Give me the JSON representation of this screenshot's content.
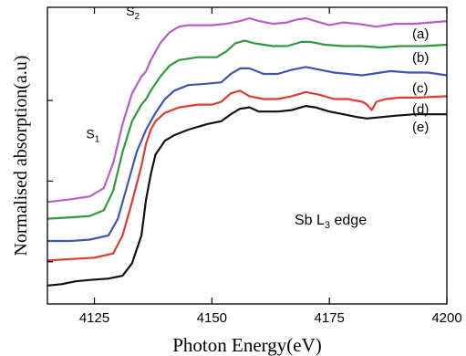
{
  "chart_data": {
    "type": "line",
    "xlabel": "Photon Energy(eV)",
    "ylabel": "Normalised absorption(a.u)",
    "xlim": [
      4115,
      4200
    ],
    "x_ticks": [
      4125,
      4150,
      4175,
      4200
    ],
    "ylim": [
      0,
      1
    ],
    "y_tick_labels": "none",
    "grid": false,
    "annotation": {
      "text": "Sb L",
      "sub": "3",
      "rest": " edge"
    },
    "features": [
      {
        "label": "S",
        "sub": "1",
        "x": 4127.5,
        "y": 0.55
      },
      {
        "label": "S",
        "sub": "2",
        "x": 4136,
        "y": 0.99
      }
    ],
    "series": [
      {
        "name": "(a)",
        "color": "#b85cc6",
        "points": [
          [
            4115,
            0.34
          ],
          [
            4120,
            0.35
          ],
          [
            4124,
            0.36
          ],
          [
            4127,
            0.39
          ],
          [
            4129,
            0.48
          ],
          [
            4131,
            0.62
          ],
          [
            4133,
            0.73
          ],
          [
            4135,
            0.79
          ],
          [
            4136,
            0.81
          ],
          [
            4137,
            0.85
          ],
          [
            4139,
            0.91
          ],
          [
            4141,
            0.95
          ],
          [
            4143,
            0.97
          ],
          [
            4145,
            0.975
          ],
          [
            4150,
            0.975
          ],
          [
            4153,
            0.98
          ],
          [
            4156,
            0.99
          ],
          [
            4158,
            1.0
          ],
          [
            4160,
            0.99
          ],
          [
            4163,
            0.98
          ],
          [
            4166,
            0.985
          ],
          [
            4168,
            0.995
          ],
          [
            4170,
            1.0
          ],
          [
            4172,
            0.99
          ],
          [
            4175,
            0.975
          ],
          [
            4178,
            0.985
          ],
          [
            4181,
            0.98
          ],
          [
            4185,
            0.97
          ],
          [
            4189,
            0.98
          ],
          [
            4193,
            0.98
          ],
          [
            4200,
            0.99
          ]
        ]
      },
      {
        "name": "(b)",
        "color": "#2e9a3c",
        "points": [
          [
            4115,
            0.28
          ],
          [
            4120,
            0.285
          ],
          [
            4124,
            0.29
          ],
          [
            4127,
            0.31
          ],
          [
            4129,
            0.38
          ],
          [
            4131,
            0.52
          ],
          [
            4133,
            0.63
          ],
          [
            4135,
            0.69
          ],
          [
            4136,
            0.71
          ],
          [
            4137,
            0.74
          ],
          [
            4139,
            0.79
          ],
          [
            4141,
            0.83
          ],
          [
            4143,
            0.85
          ],
          [
            4147,
            0.86
          ],
          [
            4151,
            0.86
          ],
          [
            4153,
            0.88
          ],
          [
            4155,
            0.91
          ],
          [
            4157,
            0.92
          ],
          [
            4159,
            0.91
          ],
          [
            4163,
            0.9
          ],
          [
            4166,
            0.9
          ],
          [
            4169,
            0.915
          ],
          [
            4171,
            0.915
          ],
          [
            4174,
            0.905
          ],
          [
            4178,
            0.9
          ],
          [
            4182,
            0.9
          ],
          [
            4186,
            0.895
          ],
          [
            4190,
            0.9
          ],
          [
            4195,
            0.9
          ],
          [
            4200,
            0.905
          ]
        ]
      },
      {
        "name": "(c)",
        "color": "#3f55b5",
        "points": [
          [
            4115,
            0.2
          ],
          [
            4120,
            0.2
          ],
          [
            4124,
            0.205
          ],
          [
            4128,
            0.22
          ],
          [
            4130,
            0.28
          ],
          [
            4132,
            0.4
          ],
          [
            4134,
            0.52
          ],
          [
            4136,
            0.6
          ],
          [
            4137,
            0.63
          ],
          [
            4138,
            0.66
          ],
          [
            4140,
            0.71
          ],
          [
            4142,
            0.74
          ],
          [
            4145,
            0.76
          ],
          [
            4149,
            0.765
          ],
          [
            4152,
            0.77
          ],
          [
            4154,
            0.8
          ],
          [
            4156,
            0.82
          ],
          [
            4158,
            0.82
          ],
          [
            4161,
            0.8
          ],
          [
            4164,
            0.8
          ],
          [
            4167,
            0.815
          ],
          [
            4170,
            0.825
          ],
          [
            4173,
            0.815
          ],
          [
            4176,
            0.805
          ],
          [
            4179,
            0.8
          ],
          [
            4182,
            0.795
          ],
          [
            4184,
            0.8
          ],
          [
            4188,
            0.81
          ],
          [
            4192,
            0.805
          ],
          [
            4196,
            0.805
          ],
          [
            4200,
            0.795
          ]
        ]
      },
      {
        "name": "(d)",
        "color": "#e03a32",
        "points": [
          [
            4115,
            0.13
          ],
          [
            4120,
            0.135
          ],
          [
            4125,
            0.14
          ],
          [
            4129,
            0.155
          ],
          [
            4131,
            0.22
          ],
          [
            4133,
            0.34
          ],
          [
            4135,
            0.47
          ],
          [
            4136,
            0.55
          ],
          [
            4137,
            0.6
          ],
          [
            4138,
            0.63
          ],
          [
            4140,
            0.66
          ],
          [
            4143,
            0.68
          ],
          [
            4147,
            0.69
          ],
          [
            4150,
            0.69
          ],
          [
            4152,
            0.7
          ],
          [
            4154,
            0.73
          ],
          [
            4156,
            0.74
          ],
          [
            4158,
            0.72
          ],
          [
            4161,
            0.71
          ],
          [
            4164,
            0.71
          ],
          [
            4167,
            0.72
          ],
          [
            4170,
            0.735
          ],
          [
            4173,
            0.725
          ],
          [
            4176,
            0.71
          ],
          [
            4179,
            0.71
          ],
          [
            4182,
            0.7
          ],
          [
            4183,
            0.69
          ],
          [
            4184,
            0.67
          ],
          [
            4185,
            0.7
          ],
          [
            4187,
            0.71
          ],
          [
            4190,
            0.715
          ],
          [
            4194,
            0.715
          ],
          [
            4200,
            0.72
          ]
        ]
      },
      {
        "name": "(e)",
        "color": "#111111",
        "points": [
          [
            4115,
            0.04
          ],
          [
            4118,
            0.045
          ],
          [
            4121,
            0.055
          ],
          [
            4124,
            0.06
          ],
          [
            4128,
            0.065
          ],
          [
            4131,
            0.075
          ],
          [
            4133,
            0.12
          ],
          [
            4135,
            0.22
          ],
          [
            4136,
            0.35
          ],
          [
            4137,
            0.44
          ],
          [
            4138,
            0.51
          ],
          [
            4140,
            0.56
          ],
          [
            4142,
            0.58
          ],
          [
            4145,
            0.6
          ],
          [
            4149,
            0.62
          ],
          [
            4152,
            0.63
          ],
          [
            4154,
            0.655
          ],
          [
            4156,
            0.675
          ],
          [
            4158,
            0.68
          ],
          [
            4160,
            0.665
          ],
          [
            4164,
            0.665
          ],
          [
            4167,
            0.67
          ],
          [
            4170,
            0.685
          ],
          [
            4172,
            0.68
          ],
          [
            4175,
            0.665
          ],
          [
            4178,
            0.655
          ],
          [
            4181,
            0.645
          ],
          [
            4183,
            0.64
          ],
          [
            4186,
            0.645
          ],
          [
            4189,
            0.65
          ],
          [
            4193,
            0.655
          ],
          [
            4197,
            0.655
          ],
          [
            4200,
            0.655
          ]
        ]
      }
    ]
  }
}
